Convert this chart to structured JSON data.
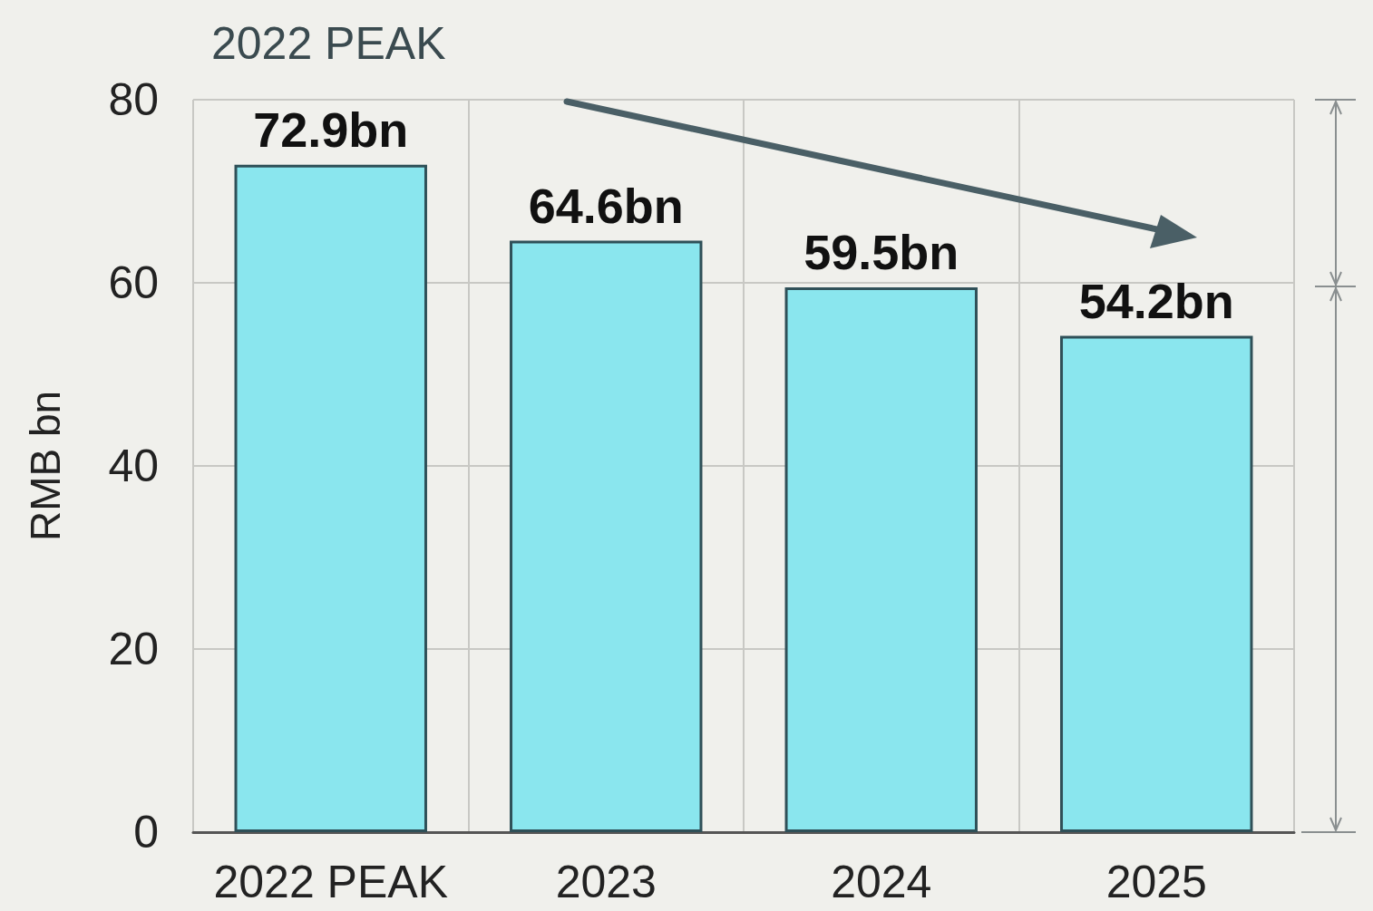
{
  "chart_data": {
    "type": "bar",
    "title": "2022 PEAK",
    "ylabel": "RMB bn",
    "categories": [
      "2022 PEAK",
      "2023",
      "2024",
      "2025"
    ],
    "values": [
      72.9,
      64.6,
      59.5,
      54.2
    ],
    "value_labels": [
      "72.9bn",
      "64.6bn",
      "59.5bn",
      "54.2bn"
    ],
    "color": "#8ae6ee",
    "ylim": [
      0,
      80
    ],
    "yticks": [
      0,
      20,
      40,
      60,
      80
    ],
    "grid": true
  }
}
